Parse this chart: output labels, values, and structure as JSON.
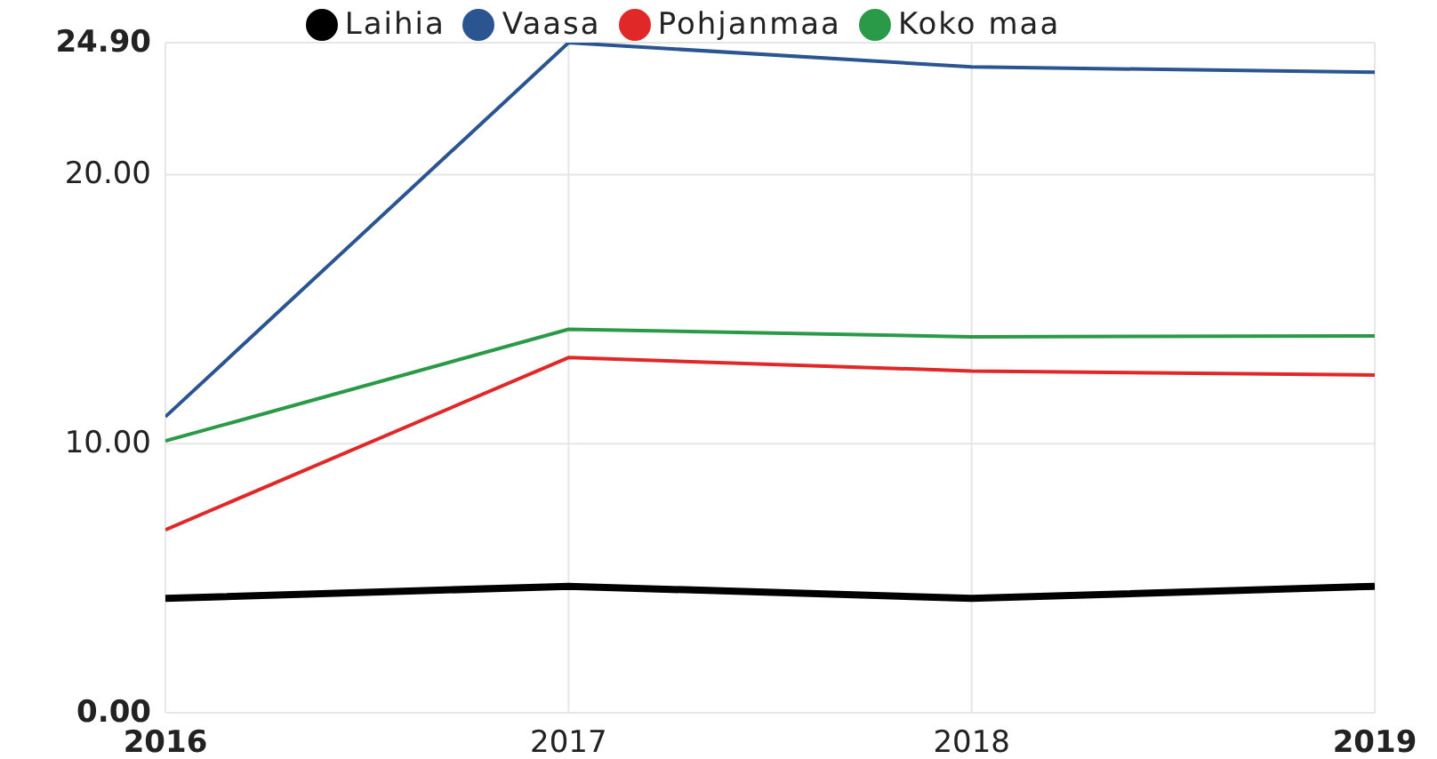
{
  "chart_data": {
    "type": "line",
    "x": [
      2016,
      2017,
      2018,
      2019
    ],
    "xlim": [
      2016,
      2019
    ],
    "xticks": [
      2016,
      2017,
      2018,
      2019
    ],
    "ylim": [
      0,
      24.9
    ],
    "yticks": [
      {
        "value": 0,
        "label": "0.00"
      },
      {
        "value": 10,
        "label": "10.00"
      },
      {
        "value": 20,
        "label": "20.00"
      },
      {
        "value": 24.9,
        "label": "24.90"
      }
    ],
    "grid": true,
    "legend": "top",
    "marker": "none",
    "series": [
      {
        "name": "Laihia",
        "color": "#000000",
        "values": [
          4.25,
          4.7,
          4.25,
          4.7
        ]
      },
      {
        "name": "Vaasa",
        "color": "#2a5590",
        "values": [
          11.0,
          24.9,
          24.0,
          23.8
        ]
      },
      {
        "name": "Pohjanmaa",
        "color": "#e02828",
        "values": [
          6.8,
          13.2,
          12.7,
          12.55
        ]
      },
      {
        "name": "Koko maa",
        "color": "#2a9a48",
        "values": [
          10.1,
          14.25,
          13.97,
          14.0
        ]
      }
    ]
  }
}
